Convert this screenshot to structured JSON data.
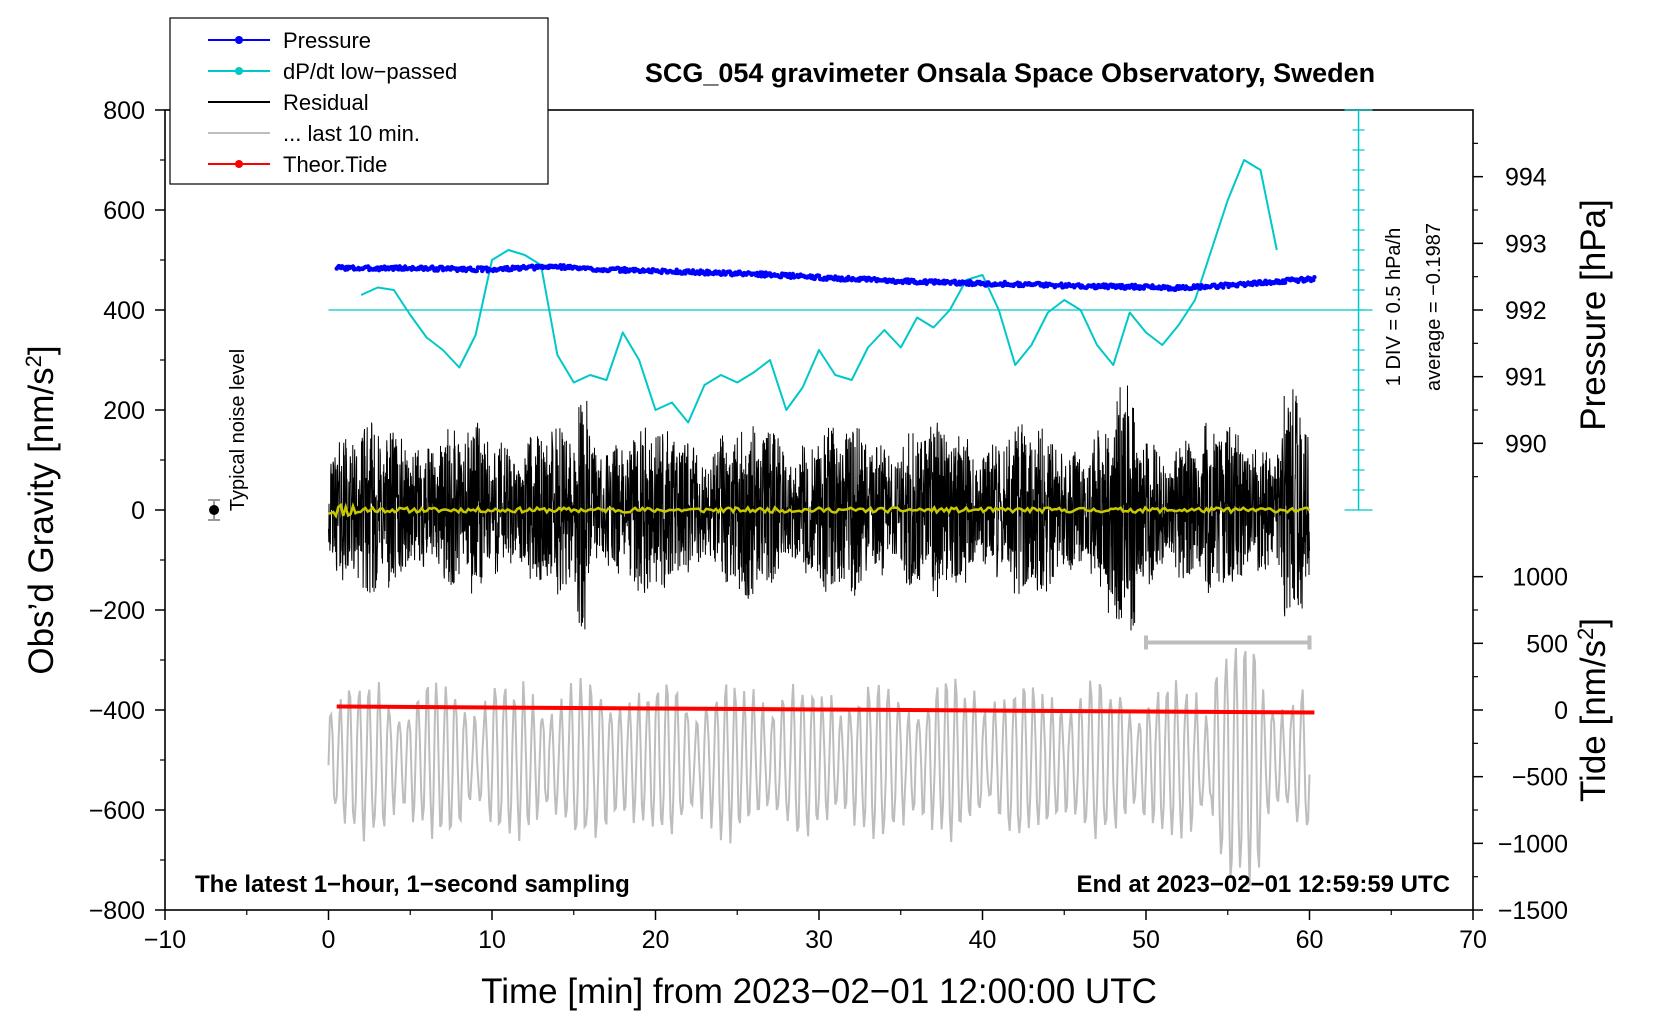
{
  "chart_data": {
    "type": "line",
    "title": "SCG_054 gravimeter Onsala Space Observatory, Sweden",
    "xlabel": "Time [min] from 2023−02−01 12:00:00 UTC",
    "xlim": [
      -10,
      70
    ],
    "x_ticks": [
      -10,
      0,
      10,
      20,
      30,
      40,
      50,
      60,
      70
    ],
    "x_tick_labels": [
      "−10",
      "0",
      "10",
      "20",
      "30",
      "40",
      "50",
      "60",
      "70"
    ],
    "left_axis": {
      "label_main": "Obs’d Gravity [nm/s",
      "label_sup": "2",
      "label_end": "]",
      "ylim": [
        -800,
        800
      ],
      "ticks": [
        -800,
        -600,
        -400,
        -200,
        0,
        200,
        400,
        600,
        800
      ],
      "tick_labels": [
        "−800",
        "−600",
        "−400",
        "−200",
        "0",
        "200",
        "400",
        "600",
        "800"
      ]
    },
    "pressure_axis": {
      "label": "Pressure [hPa]",
      "ticks": [
        990,
        991,
        992,
        993,
        994
      ],
      "tick_labels": [
        "990",
        "991",
        "992",
        "993",
        "994"
      ],
      "gravity_at_992": 400,
      "gravity_per_hpa": 133.33
    },
    "tide_axis": {
      "label_main": "Tide [nm/s",
      "label_sup": "2",
      "label_end": "]",
      "ticks": [
        -1500,
        -1000,
        -500,
        0,
        500,
        1000
      ],
      "tick_labels": [
        "−1500",
        "−1000",
        "−500",
        "0",
        "500",
        "1000"
      ],
      "gravity_at_0": -400,
      "gravity_per_unit": 0.2667
    },
    "dpdt_scale": {
      "label_div": "1 DIV = 0.5 hPa/h",
      "label_avg": "average = −0.1987",
      "x": 63,
      "y_range": [
        0,
        800
      ],
      "n_div": 20
    },
    "series": [
      {
        "name": "Pressure",
        "color": "#0000ff",
        "style": "dots",
        "x": [
          0.5,
          2,
          4,
          6,
          8,
          10,
          12,
          14,
          16,
          18,
          20,
          22,
          24,
          26,
          28,
          30,
          32,
          34,
          36,
          38,
          40,
          42,
          44,
          46,
          48,
          50,
          52,
          54,
          56,
          58,
          60.3
        ],
        "values": [
          485,
          483,
          484,
          483,
          482,
          481,
          484,
          487,
          482,
          480,
          478,
          476,
          474,
          472,
          469,
          465,
          462,
          459,
          457,
          455,
          453,
          452,
          450,
          448,
          447,
          446,
          444,
          447,
          452,
          457,
          462
        ]
      },
      {
        "name": "dP/dt low−passed",
        "color": "#00c8c8",
        "style": "line",
        "x": [
          2,
          3,
          4,
          5,
          6,
          7,
          8,
          9,
          10,
          11,
          12,
          13,
          14,
          15,
          16,
          17,
          18,
          19,
          20,
          21,
          22,
          23,
          24,
          25,
          26,
          27,
          28,
          29,
          30,
          31,
          32,
          33,
          34,
          35,
          36,
          37,
          38,
          39,
          40,
          41,
          42,
          43,
          44,
          45,
          46,
          47,
          48,
          49,
          50,
          51,
          52,
          53,
          54,
          55,
          56,
          57,
          58
        ],
        "values": [
          430,
          445,
          440,
          390,
          345,
          320,
          285,
          350,
          500,
          520,
          510,
          490,
          310,
          255,
          270,
          260,
          355,
          300,
          200,
          215,
          175,
          250,
          270,
          255,
          275,
          300,
          200,
          245,
          320,
          270,
          260,
          325,
          360,
          325,
          385,
          365,
          400,
          460,
          470,
          400,
          290,
          330,
          395,
          420,
          400,
          330,
          290,
          395,
          355,
          330,
          370,
          420,
          520,
          620,
          700,
          680,
          520
        ]
      },
      {
        "name": "Residual",
        "color": "#000000",
        "style": "noise",
        "x_range": [
          0,
          60
        ],
        "amplitude_min": -290,
        "amplitude_max": 275
      },
      {
        "name": "Smoothed residual",
        "color": "#c8c800",
        "style": "line",
        "x_range": [
          0,
          60
        ],
        "values": [
          0
        ]
      },
      {
        "name": "... last 10 min.",
        "color": "#bdbdbd",
        "style": "oscillation",
        "x_range": [
          0,
          60
        ],
        "center": -500,
        "amplitude_min": -795,
        "amplitude_max": -270,
        "marker_x_range": [
          50,
          60
        ],
        "marker_y": -265
      },
      {
        "name": "Theor.Tide",
        "color": "#ff0000",
        "style": "line",
        "x": [
          0.5,
          10,
          20,
          30,
          40,
          50,
          60.3
        ],
        "values": [
          -393,
          -395,
          -397,
          -399,
          -401,
          -403,
          -405
        ]
      }
    ],
    "noise_indicator": {
      "label": "Typical noise level",
      "x": -7,
      "value": 0,
      "error": 20
    },
    "legend": {
      "placement": "top-left",
      "entries": [
        {
          "label": "Pressure",
          "color": "#0000ff",
          "marker": true
        },
        {
          "label": "dP/dt low−passed",
          "color": "#00c8c8",
          "marker": true
        },
        {
          "label": "Residual",
          "color": "#000000",
          "marker": false
        },
        {
          "label": "... last 10 min.",
          "color": "#bdbdbd",
          "marker": false
        },
        {
          "label": "Theor.Tide",
          "color": "#ff0000",
          "marker": true
        }
      ]
    },
    "annotations": {
      "bottom_left": "The latest 1−hour, 1−second sampling",
      "bottom_right": "End at 2023−02−01 12:59:59 UTC"
    }
  }
}
